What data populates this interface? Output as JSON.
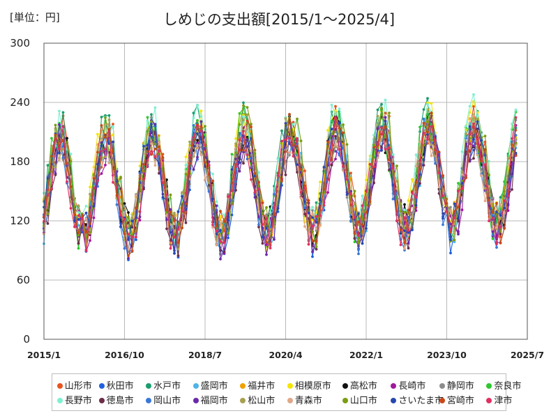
{
  "chart_data": {
    "type": "line",
    "title": "しめじの支出額[2015/1～2025/4]",
    "unit_label": "[単位：円]",
    "xlabel": "",
    "ylabel": "",
    "ylim": [
      0,
      300
    ],
    "yticks": [
      "0",
      "60",
      "120",
      "180",
      "240",
      "300"
    ],
    "ytick_values": [
      0,
      60,
      120,
      180,
      240,
      300
    ],
    "xlim": [
      0,
      126
    ],
    "xticks": [
      "2015/1",
      "2016/10",
      "2018/7",
      "2020/4",
      "2022/1",
      "2023/10",
      "2025/7"
    ],
    "xtick_values": [
      0,
      21,
      42,
      63,
      84,
      105,
      126
    ],
    "grid": true,
    "legend_position": "bottom",
    "months": 124,
    "series": [
      {
        "name": "山形市",
        "color": "#e8541e",
        "base": 155,
        "amp": 55,
        "phase": 0.0,
        "seed": 1,
        "trend": 0.12
      },
      {
        "name": "秋田市",
        "color": "#1f5fe0",
        "base": 150,
        "amp": 52,
        "phase": 0.2,
        "seed": 2,
        "trend": 0.1
      },
      {
        "name": "水戸市",
        "color": "#1a9e6e",
        "base": 160,
        "amp": 55,
        "phase": 0.4,
        "seed": 3,
        "trend": 0.1
      },
      {
        "name": "盛岡市",
        "color": "#4fb3e8",
        "base": 150,
        "amp": 50,
        "phase": 0.1,
        "seed": 4,
        "trend": 0.12
      },
      {
        "name": "福井市",
        "color": "#f0a000",
        "base": 155,
        "amp": 52,
        "phase": 0.3,
        "seed": 5,
        "trend": 0.1
      },
      {
        "name": "相模原市",
        "color": "#f5e400",
        "base": 160,
        "amp": 55,
        "phase": 0.5,
        "seed": 6,
        "trend": 0.1
      },
      {
        "name": "高松市",
        "color": "#111111",
        "base": 155,
        "amp": 50,
        "phase": 0.2,
        "seed": 7,
        "trend": 0.1
      },
      {
        "name": "長崎市",
        "color": "#a0189e",
        "base": 148,
        "amp": 50,
        "phase": 0.0,
        "seed": 8,
        "trend": 0.1
      },
      {
        "name": "静岡市",
        "color": "#8c8c8c",
        "base": 152,
        "amp": 50,
        "phase": 0.3,
        "seed": 9,
        "trend": 0.1
      },
      {
        "name": "奈良市",
        "color": "#2ec82e",
        "base": 158,
        "amp": 52,
        "phase": 0.6,
        "seed": 10,
        "trend": 0.1
      },
      {
        "name": "長野市",
        "color": "#7ef0d0",
        "base": 165,
        "amp": 55,
        "phase": 0.2,
        "seed": 11,
        "trend": 0.12
      },
      {
        "name": "徳島市",
        "color": "#6b2e4a",
        "base": 145,
        "amp": 48,
        "phase": 0.1,
        "seed": 12,
        "trend": 0.1
      },
      {
        "name": "岡山市",
        "color": "#3a78d8",
        "base": 150,
        "amp": 50,
        "phase": 0.4,
        "seed": 13,
        "trend": 0.1
      },
      {
        "name": "福岡市",
        "color": "#6a2aa8",
        "base": 148,
        "amp": 50,
        "phase": 0.2,
        "seed": 14,
        "trend": 0.1
      },
      {
        "name": "松山市",
        "color": "#a8a050",
        "base": 155,
        "amp": 50,
        "phase": 0.3,
        "seed": 15,
        "trend": 0.1
      },
      {
        "name": "青森市",
        "color": "#e0a888",
        "base": 150,
        "amp": 50,
        "phase": 0.5,
        "seed": 16,
        "trend": 0.1
      },
      {
        "name": "山口市",
        "color": "#7a9e10",
        "base": 160,
        "amp": 55,
        "phase": 0.0,
        "seed": 17,
        "trend": 0.1
      },
      {
        "name": "さいたま市",
        "color": "#2848b0",
        "base": 152,
        "amp": 50,
        "phase": 0.3,
        "seed": 18,
        "trend": 0.1
      },
      {
        "name": "宮崎市",
        "color": "#c84818",
        "base": 155,
        "amp": 52,
        "phase": 0.1,
        "seed": 19,
        "trend": 0.1
      },
      {
        "name": "津市",
        "color": "#e03060",
        "base": 150,
        "amp": 50,
        "phase": 0.4,
        "seed": 20,
        "trend": 0.1
      }
    ]
  }
}
